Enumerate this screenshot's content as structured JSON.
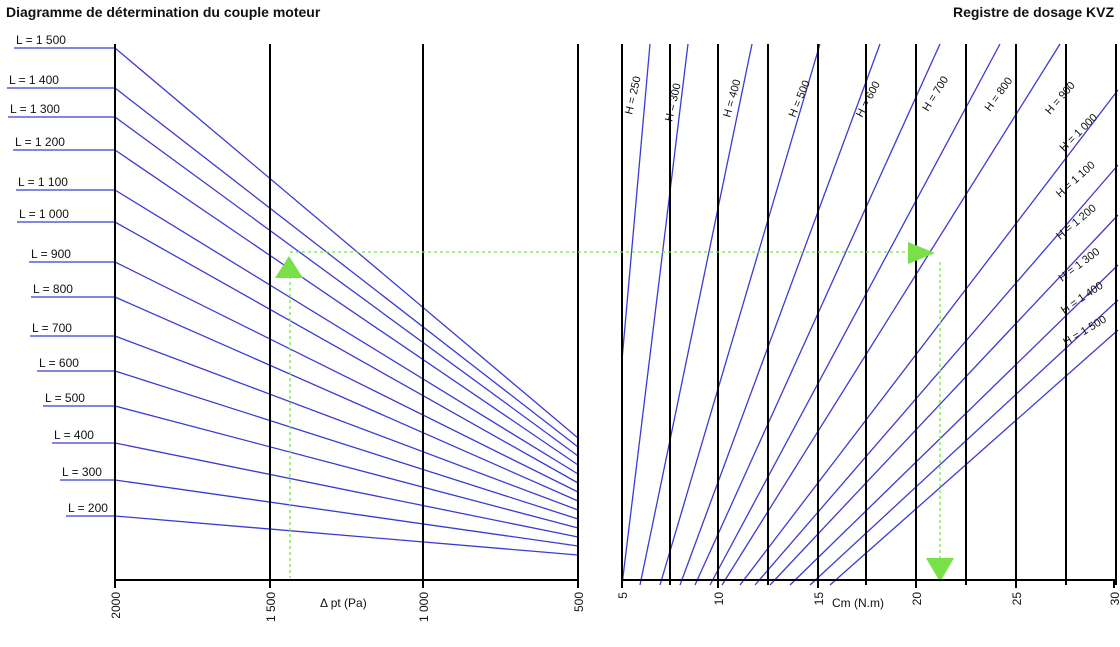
{
  "header": {
    "title_left": "Diagramme de détermination du couple moteur",
    "title_right": "Registre de dosage KVZ"
  },
  "colors": {
    "line": "#3b3bd4",
    "guide": "#7ae04a",
    "axis": "#000000",
    "text": "#111111"
  },
  "chart_data": [
    {
      "type": "line",
      "title": "Diagramme de détermination du couple moteur",
      "xlabel": "Δ pt (Pa)",
      "x_direction": "reversed",
      "xlim": [
        2000,
        500
      ],
      "x_ticks": [
        "2000",
        "1 500",
        "1 000",
        "500"
      ],
      "series": [
        {
          "name": "L = 1 500"
        },
        {
          "name": "L = 1 400"
        },
        {
          "name": "L = 1 300"
        },
        {
          "name": "L = 1 200"
        },
        {
          "name": "L = 1 100"
        },
        {
          "name": "L = 1 000"
        },
        {
          "name": "L = 900"
        },
        {
          "name": "L = 800"
        },
        {
          "name": "L = 700"
        },
        {
          "name": "L = 600"
        },
        {
          "name": "L = 500"
        },
        {
          "name": "L = 400"
        },
        {
          "name": "L = 300"
        },
        {
          "name": "L = 200"
        }
      ]
    },
    {
      "type": "line",
      "title": "Registre de dosage KVZ",
      "xlabel": "Cm (N.m)",
      "x_ticks": [
        "5",
        "10",
        "15",
        "20",
        "25",
        "30"
      ],
      "series": [
        {
          "name": "H = 250"
        },
        {
          "name": "H = 300"
        },
        {
          "name": "H = 400"
        },
        {
          "name": "H = 500"
        },
        {
          "name": "H = 600"
        },
        {
          "name": "H = 700"
        },
        {
          "name": "H = 800"
        },
        {
          "name": "H = 900"
        },
        {
          "name": "H = 1 000"
        },
        {
          "name": "H = 1 100"
        },
        {
          "name": "H = 1 200"
        },
        {
          "name": "H = 1 300"
        },
        {
          "name": "H = 1 400"
        },
        {
          "name": "H = 1 500"
        }
      ]
    }
  ]
}
